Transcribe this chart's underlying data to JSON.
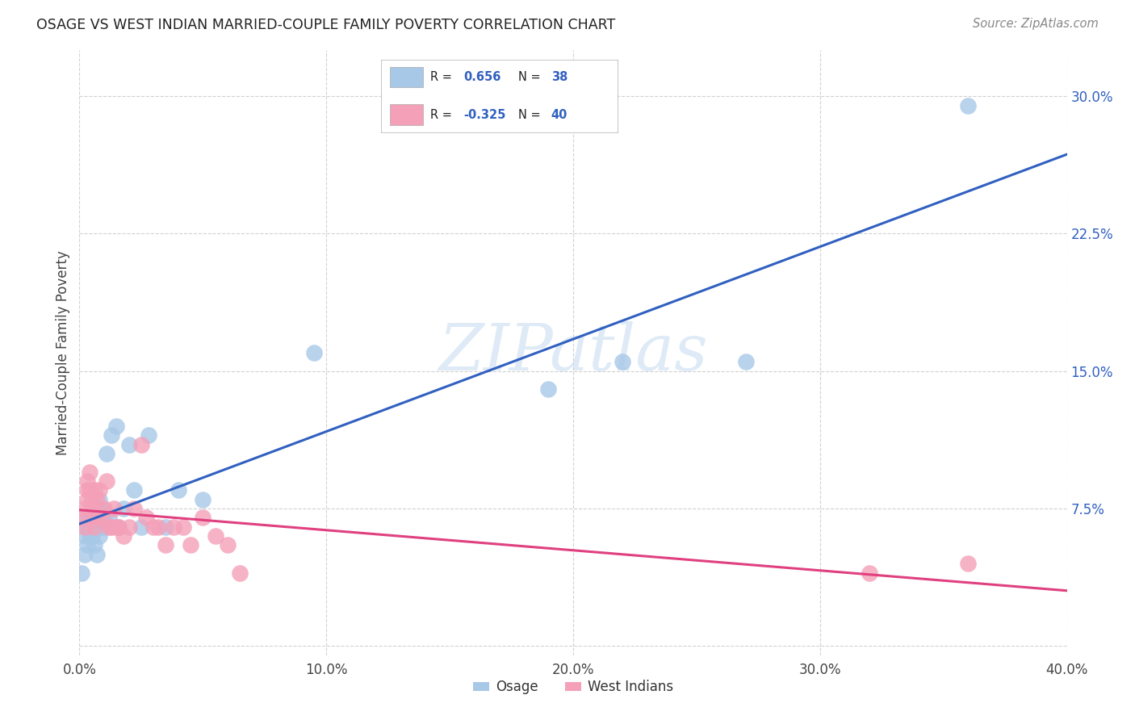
{
  "title": "OSAGE VS WEST INDIAN MARRIED-COUPLE FAMILY POVERTY CORRELATION CHART",
  "source": "Source: ZipAtlas.com",
  "ylabel": "Married-Couple Family Poverty",
  "xlim": [
    0.0,
    0.4
  ],
  "ylim": [
    -0.005,
    0.325
  ],
  "xticks": [
    0.0,
    0.1,
    0.2,
    0.3,
    0.4
  ],
  "yticks": [
    0.0,
    0.075,
    0.15,
    0.225,
    0.3
  ],
  "xticklabels": [
    "0.0%",
    "10.0%",
    "20.0%",
    "30.0%",
    "40.0%"
  ],
  "yticklabels": [
    "",
    "7.5%",
    "15.0%",
    "22.5%",
    "30.0%"
  ],
  "legend_line1": "R =  0.656   N = 38",
  "legend_line2": "R = -0.325   N = 40",
  "osage_color": "#a8c8e8",
  "west_indian_color": "#f4a0b8",
  "trend_osage_color": "#3060c0",
  "trend_wi_color": "#e04080",
  "watermark_color": "#c8ddf0",
  "osage_x": [
    0.001,
    0.002,
    0.002,
    0.003,
    0.003,
    0.003,
    0.004,
    0.004,
    0.005,
    0.005,
    0.006,
    0.006,
    0.007,
    0.007,
    0.008,
    0.008,
    0.009,
    0.009,
    0.01,
    0.01,
    0.011,
    0.012,
    0.013,
    0.015,
    0.016,
    0.018,
    0.02,
    0.022,
    0.025,
    0.028,
    0.035,
    0.04,
    0.05,
    0.095,
    0.19,
    0.22,
    0.27,
    0.36
  ],
  "osage_y": [
    0.04,
    0.06,
    0.05,
    0.065,
    0.055,
    0.07,
    0.06,
    0.065,
    0.06,
    0.07,
    0.065,
    0.055,
    0.075,
    0.05,
    0.06,
    0.08,
    0.065,
    0.075,
    0.07,
    0.065,
    0.105,
    0.07,
    0.115,
    0.12,
    0.065,
    0.075,
    0.11,
    0.085,
    0.065,
    0.115,
    0.065,
    0.085,
    0.08,
    0.16,
    0.14,
    0.155,
    0.155,
    0.295
  ],
  "wi_x": [
    0.001,
    0.002,
    0.002,
    0.003,
    0.003,
    0.003,
    0.004,
    0.004,
    0.005,
    0.005,
    0.006,
    0.006,
    0.007,
    0.007,
    0.008,
    0.009,
    0.01,
    0.011,
    0.012,
    0.013,
    0.014,
    0.015,
    0.016,
    0.018,
    0.02,
    0.022,
    0.025,
    0.027,
    0.03,
    0.032,
    0.035,
    0.038,
    0.042,
    0.045,
    0.05,
    0.055,
    0.06,
    0.065,
    0.32,
    0.36
  ],
  "wi_y": [
    0.07,
    0.065,
    0.075,
    0.08,
    0.085,
    0.09,
    0.085,
    0.095,
    0.08,
    0.075,
    0.085,
    0.065,
    0.07,
    0.08,
    0.085,
    0.07,
    0.075,
    0.09,
    0.065,
    0.065,
    0.075,
    0.065,
    0.065,
    0.06,
    0.065,
    0.075,
    0.11,
    0.07,
    0.065,
    0.065,
    0.055,
    0.065,
    0.065,
    0.055,
    0.07,
    0.06,
    0.055,
    0.04,
    0.04,
    0.045
  ],
  "background_color": "#ffffff",
  "grid_color": "#cccccc"
}
